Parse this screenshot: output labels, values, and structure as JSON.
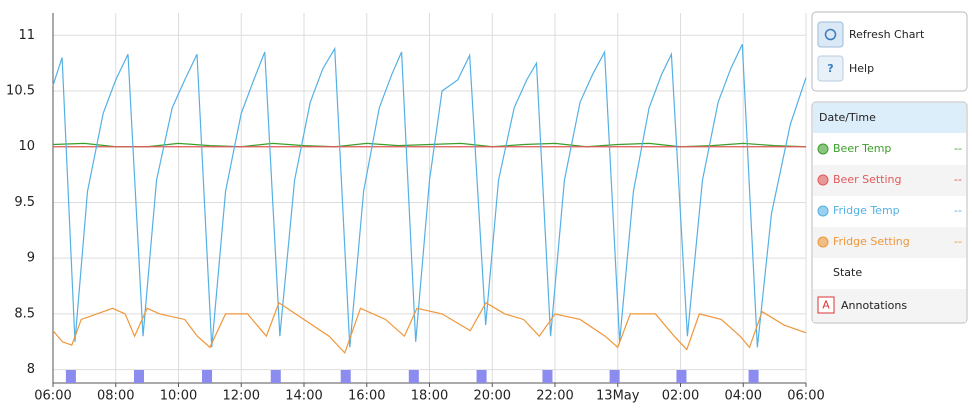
{
  "chart_data": {
    "type": "line",
    "xlim": [
      0,
      24
    ],
    "ylim": [
      7.88,
      11.2
    ],
    "xticks": [
      {
        "value": 0,
        "label": "06:00"
      },
      {
        "value": 2,
        "label": "08:00"
      },
      {
        "value": 4,
        "label": "10:00"
      },
      {
        "value": 6,
        "label": "12:00"
      },
      {
        "value": 8,
        "label": "14:00"
      },
      {
        "value": 10,
        "label": "16:00"
      },
      {
        "value": 12,
        "label": "18:00"
      },
      {
        "value": 14,
        "label": "20:00"
      },
      {
        "value": 16,
        "label": "22:00"
      },
      {
        "value": 18,
        "label": "13May"
      },
      {
        "value": 20,
        "label": "02:00"
      },
      {
        "value": 22,
        "label": "04:00"
      },
      {
        "value": 24,
        "label": "06:00"
      }
    ],
    "yticks": [
      8,
      8.5,
      9,
      9.5,
      10,
      10.5,
      11
    ],
    "grid": true,
    "series": [
      {
        "name": "Beer Temp",
        "color": "#3a9f2a",
        "legend_value": "--",
        "x": [
          0,
          1,
          2,
          3,
          4,
          5,
          6,
          7,
          8,
          9,
          10,
          11,
          12,
          13,
          14,
          15,
          16,
          17,
          18,
          19,
          20,
          21,
          22,
          23,
          24
        ],
        "values": [
          10.02,
          10.03,
          10.0,
          10.0,
          10.03,
          10.01,
          10.0,
          10.03,
          10.01,
          10.0,
          10.03,
          10.01,
          10.02,
          10.03,
          10.0,
          10.02,
          10.03,
          10.0,
          10.02,
          10.03,
          10.0,
          10.01,
          10.03,
          10.01,
          10.0
        ]
      },
      {
        "name": "Beer Setting",
        "color": "#e05a5a",
        "legend_value": "--",
        "x": [
          0,
          24
        ],
        "values": [
          10,
          10
        ]
      },
      {
        "name": "Fridge Temp",
        "color": "#55b0e4",
        "legend_value": "--",
        "x": [
          0,
          0.29,
          0.7,
          1.1,
          1.6,
          2.0,
          2.39,
          2.87,
          3.3,
          3.8,
          4.2,
          4.59,
          5.06,
          5.5,
          6.0,
          6.4,
          6.75,
          7.23,
          7.7,
          8.2,
          8.6,
          8.98,
          9.46,
          9.9,
          10.4,
          10.8,
          11.11,
          11.56,
          12.0,
          12.4,
          12.9,
          13.28,
          13.79,
          14.2,
          14.7,
          15.1,
          15.41,
          15.86,
          16.3,
          16.8,
          17.2,
          17.58,
          18.06,
          18.5,
          19.0,
          19.4,
          19.71,
          20.22,
          20.7,
          21.2,
          21.6,
          21.97,
          22.45,
          22.9,
          23.5,
          24
        ],
        "values": [
          10.55,
          10.8,
          8.25,
          9.6,
          10.3,
          10.6,
          10.83,
          8.3,
          9.7,
          10.35,
          10.6,
          10.83,
          8.2,
          9.6,
          10.3,
          10.6,
          10.85,
          8.3,
          9.7,
          10.4,
          10.7,
          10.88,
          8.2,
          9.6,
          10.35,
          10.65,
          10.85,
          8.25,
          9.7,
          10.5,
          10.6,
          10.82,
          8.4,
          9.7,
          10.35,
          10.6,
          10.75,
          8.3,
          9.7,
          10.4,
          10.65,
          10.85,
          8.25,
          9.6,
          10.35,
          10.65,
          10.83,
          8.3,
          9.7,
          10.4,
          10.7,
          10.92,
          8.2,
          9.4,
          10.2,
          10.62
        ]
      },
      {
        "name": "Fridge Setting",
        "color": "#f0963a",
        "legend_value": "--",
        "x": [
          0,
          0.3,
          0.6,
          0.9,
          1.4,
          1.9,
          2.3,
          2.6,
          3.0,
          3.4,
          4.2,
          4.6,
          5.0,
          5.5,
          6.2,
          6.8,
          7.2,
          8.0,
          8.8,
          9.3,
          9.8,
          10.6,
          11.2,
          11.6,
          12.4,
          13.3,
          13.8,
          14.4,
          15.0,
          15.5,
          16.0,
          16.8,
          17.6,
          18.0,
          18.4,
          19.2,
          19.8,
          20.2,
          20.6,
          21.3,
          21.9,
          22.2,
          22.6,
          23.3,
          24
        ],
        "values": [
          8.35,
          8.25,
          8.22,
          8.45,
          8.5,
          8.55,
          8.5,
          8.3,
          8.55,
          8.5,
          8.45,
          8.3,
          8.2,
          8.5,
          8.5,
          8.3,
          8.6,
          8.45,
          8.3,
          8.15,
          8.55,
          8.45,
          8.3,
          8.55,
          8.5,
          8.35,
          8.6,
          8.5,
          8.45,
          8.3,
          8.5,
          8.45,
          8.3,
          8.2,
          8.5,
          8.5,
          8.3,
          8.18,
          8.5,
          8.45,
          8.3,
          8.2,
          8.52,
          8.4,
          8.33
        ]
      }
    ],
    "state": {
      "name": "State",
      "color": "#8c8cf0",
      "start": [
        0.41,
        2.58,
        4.75,
        6.94,
        9.17,
        11.34,
        13.5,
        15.6,
        17.74,
        19.87,
        22.17
      ],
      "end": [
        0.73,
        2.9,
        5.07,
        7.26,
        9.49,
        11.66,
        13.82,
        15.92,
        18.06,
        20.19,
        22.49
      ]
    },
    "annotations": {
      "icon": "A",
      "label": "Annotations"
    }
  },
  "controls": {
    "refresh": "Refresh Chart",
    "help_icon": "?",
    "help": "Help"
  },
  "legend_header": "Date/Time"
}
